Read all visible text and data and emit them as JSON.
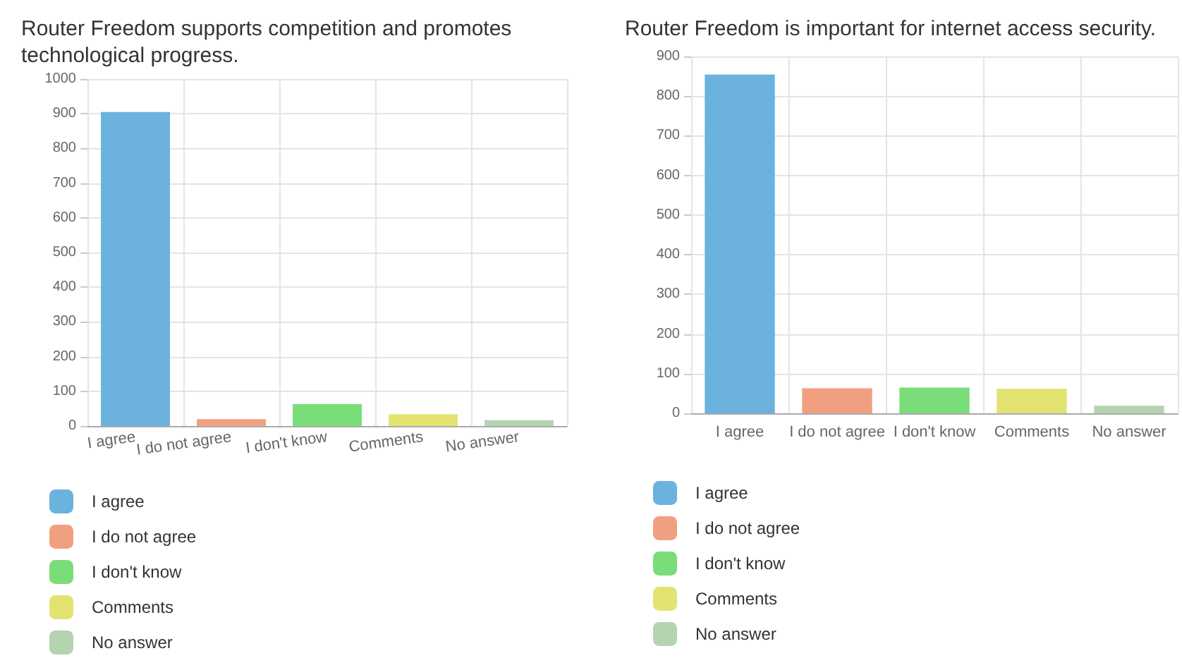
{
  "chart_data": [
    {
      "type": "bar",
      "title": "Router Freedom supports competition and promotes technological progress.",
      "categories": [
        "I agree",
        "I do not agree",
        "I don't know",
        "Comments",
        "No answer"
      ],
      "stacked": true,
      "series": [
        {
          "name": "I agree",
          "color": "#6cb2de",
          "values": [
            905,
            null,
            null,
            null,
            null
          ]
        },
        {
          "name": "I do not agree",
          "color": "#f0a080",
          "values": [
            null,
            20,
            null,
            null,
            null
          ]
        },
        {
          "name": "I don't know",
          "color": "#7ade78",
          "values": [
            null,
            null,
            63,
            null,
            null
          ]
        },
        {
          "name": "Comments",
          "color": "#e3e372",
          "values": [
            null,
            null,
            null,
            34,
            null
          ]
        },
        {
          "name": "No answer",
          "color": "#b5d3b1",
          "values": [
            null,
            null,
            null,
            null,
            17
          ]
        }
      ],
      "ylim": [
        0,
        1000
      ],
      "yticks": [
        0,
        100,
        200,
        300,
        400,
        500,
        600,
        700,
        800,
        900,
        1000
      ],
      "grid": true,
      "legend": "bottom"
    },
    {
      "type": "bar",
      "title": "Router Freedom is important for internet access security.",
      "categories": [
        "I agree",
        "I do not agree",
        "I don't know",
        "Comments",
        "No answer"
      ],
      "stacked": true,
      "series": [
        {
          "name": "I agree",
          "color": "#6cb2de",
          "values": [
            854,
            null,
            null,
            null,
            null
          ]
        },
        {
          "name": "I do not agree",
          "color": "#f0a080",
          "values": [
            null,
            63,
            null,
            null,
            null
          ]
        },
        {
          "name": "I don't know",
          "color": "#7ade78",
          "values": [
            null,
            null,
            65,
            null,
            null
          ]
        },
        {
          "name": "Comments",
          "color": "#e3e372",
          "values": [
            null,
            null,
            null,
            62,
            null
          ]
        },
        {
          "name": "No answer",
          "color": "#b5d3b1",
          "values": [
            null,
            null,
            null,
            null,
            19
          ]
        }
      ],
      "ylim": [
        0,
        900
      ],
      "yticks": [
        0,
        100,
        200,
        300,
        400,
        500,
        600,
        700,
        800,
        900
      ],
      "grid": true,
      "legend": "bottom"
    }
  ]
}
